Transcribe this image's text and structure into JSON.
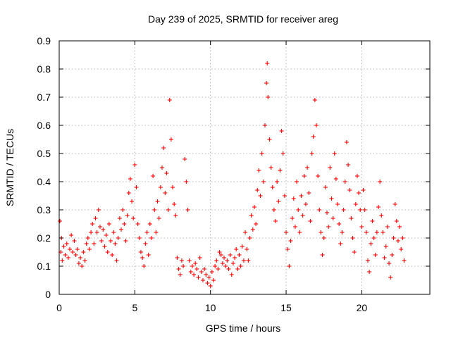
{
  "chart_data": {
    "type": "scatter",
    "title": "Day 239 of 2025, SRMTID for receiver areg",
    "xlabel": "GPS time / hours",
    "ylabel": "SRMTID / TECUs",
    "xlim": [
      0,
      24.5
    ],
    "ylim": [
      0,
      0.9
    ],
    "xticks": [
      0,
      5,
      10,
      15,
      20
    ],
    "xtick_labels": [
      "0",
      "5",
      "10",
      "15",
      "20"
    ],
    "yticks": [
      0,
      0.1,
      0.2,
      0.3,
      0.4,
      0.5,
      0.6,
      0.7,
      0.8,
      0.9
    ],
    "ytick_labels": [
      "0",
      "0.1",
      "0.2",
      "0.3",
      "0.4",
      "0.5",
      "0.6",
      "0.7",
      "0.8",
      "0.9"
    ],
    "grid": true,
    "marker": "+",
    "color": "#ff0000",
    "series": [
      {
        "name": "SRMTID",
        "points": [
          [
            0.05,
            0.26
          ],
          [
            0.1,
            0.15
          ],
          [
            0.15,
            0.2
          ],
          [
            0.2,
            0.12
          ],
          [
            0.3,
            0.17
          ],
          [
            0.4,
            0.14
          ],
          [
            0.5,
            0.18
          ],
          [
            0.6,
            0.13
          ],
          [
            0.7,
            0.16
          ],
          [
            0.8,
            0.21
          ],
          [
            0.9,
            0.15
          ],
          [
            1.0,
            0.19
          ],
          [
            1.1,
            0.14
          ],
          [
            1.2,
            0.16
          ],
          [
            1.3,
            0.11
          ],
          [
            1.4,
            0.13
          ],
          [
            1.5,
            0.1
          ],
          [
            1.6,
            0.15
          ],
          [
            1.7,
            0.12
          ],
          [
            1.8,
            0.18
          ],
          [
            1.9,
            0.2
          ],
          [
            2.0,
            0.16
          ],
          [
            2.1,
            0.22
          ],
          [
            2.2,
            0.25
          ],
          [
            2.3,
            0.18
          ],
          [
            2.4,
            0.27
          ],
          [
            2.5,
            0.22
          ],
          [
            2.6,
            0.3
          ],
          [
            2.7,
            0.24
          ],
          [
            2.8,
            0.19
          ],
          [
            2.9,
            0.23
          ],
          [
            3.0,
            0.17
          ],
          [
            3.1,
            0.21
          ],
          [
            3.2,
            0.15
          ],
          [
            3.3,
            0.25
          ],
          [
            3.4,
            0.19
          ],
          [
            3.5,
            0.14
          ],
          [
            3.6,
            0.22
          ],
          [
            3.7,
            0.18
          ],
          [
            3.8,
            0.12
          ],
          [
            3.9,
            0.2
          ],
          [
            4.0,
            0.27
          ],
          [
            4.1,
            0.23
          ],
          [
            4.2,
            0.3
          ],
          [
            4.3,
            0.25
          ],
          [
            4.4,
            0.19
          ],
          [
            4.5,
            0.28
          ],
          [
            4.6,
            0.36
          ],
          [
            4.7,
            0.41
          ],
          [
            4.8,
            0.33
          ],
          [
            4.9,
            0.27
          ],
          [
            5.0,
            0.46
          ],
          [
            5.1,
            0.38
          ],
          [
            5.2,
            0.25
          ],
          [
            5.3,
            0.2
          ],
          [
            5.4,
            0.15
          ],
          [
            5.5,
            0.13
          ],
          [
            5.6,
            0.1
          ],
          [
            5.7,
            0.18
          ],
          [
            5.8,
            0.22
          ],
          [
            5.9,
            0.14
          ],
          [
            6.0,
            0.25
          ],
          [
            6.1,
            0.2
          ],
          [
            6.2,
            0.42
          ],
          [
            6.3,
            0.3
          ],
          [
            6.4,
            0.22
          ],
          [
            6.5,
            0.33
          ],
          [
            6.6,
            0.27
          ],
          [
            6.7,
            0.38
          ],
          [
            6.8,
            0.45
          ],
          [
            6.9,
            0.52
          ],
          [
            7.0,
            0.36
          ],
          [
            7.1,
            0.43
          ],
          [
            7.2,
            0.3
          ],
          [
            7.3,
            0.69
          ],
          [
            7.4,
            0.55
          ],
          [
            7.5,
            0.38
          ],
          [
            7.6,
            0.32
          ],
          [
            7.7,
            0.28
          ],
          [
            7.8,
            0.13
          ],
          [
            7.9,
            0.09
          ],
          [
            8.0,
            0.07
          ],
          [
            8.1,
            0.12
          ],
          [
            8.2,
            0.1
          ],
          [
            8.3,
            0.48
          ],
          [
            8.4,
            0.4
          ],
          [
            8.5,
            0.3
          ],
          [
            8.6,
            0.12
          ],
          [
            8.7,
            0.08
          ],
          [
            8.8,
            0.1
          ],
          [
            8.9,
            0.07
          ],
          [
            9.0,
            0.11
          ],
          [
            9.1,
            0.09
          ],
          [
            9.2,
            0.06
          ],
          [
            9.3,
            0.13
          ],
          [
            9.4,
            0.08
          ],
          [
            9.5,
            0.05
          ],
          [
            9.6,
            0.09
          ],
          [
            9.7,
            0.07
          ],
          [
            9.8,
            0.04
          ],
          [
            9.9,
            0.06
          ],
          [
            10.0,
            0.03
          ],
          [
            10.1,
            0.08
          ],
          [
            10.2,
            0.05
          ],
          [
            10.3,
            0.1
          ],
          [
            10.4,
            0.12
          ],
          [
            10.5,
            0.09
          ],
          [
            10.6,
            0.15
          ],
          [
            10.7,
            0.14
          ],
          [
            10.8,
            0.11
          ],
          [
            10.9,
            0.13
          ],
          [
            11.0,
            0.1
          ],
          [
            11.1,
            0.12
          ],
          [
            11.2,
            0.09
          ],
          [
            11.3,
            0.14
          ],
          [
            11.4,
            0.07
          ],
          [
            11.5,
            0.11
          ],
          [
            11.6,
            0.13
          ],
          [
            11.7,
            0.16
          ],
          [
            11.8,
            0.09
          ],
          [
            11.9,
            0.14
          ],
          [
            12.0,
            0.1
          ],
          [
            12.1,
            0.17
          ],
          [
            12.2,
            0.12
          ],
          [
            12.3,
            0.22
          ],
          [
            12.4,
            0.16
          ],
          [
            12.5,
            0.12
          ],
          [
            12.6,
            0.2
          ],
          [
            12.7,
            0.28
          ],
          [
            12.8,
            0.23
          ],
          [
            12.9,
            0.31
          ],
          [
            13.0,
            0.25
          ],
          [
            13.1,
            0.37
          ],
          [
            13.2,
            0.44
          ],
          [
            13.3,
            0.35
          ],
          [
            13.4,
            0.5
          ],
          [
            13.5,
            0.4
          ],
          [
            13.6,
            0.6
          ],
          [
            13.7,
            0.75
          ],
          [
            13.75,
            0.82
          ],
          [
            13.8,
            0.7
          ],
          [
            13.9,
            0.55
          ],
          [
            14.0,
            0.45
          ],
          [
            14.1,
            0.38
          ],
          [
            14.2,
            0.3
          ],
          [
            14.3,
            0.26
          ],
          [
            14.4,
            0.4
          ],
          [
            14.5,
            0.33
          ],
          [
            14.6,
            0.44
          ],
          [
            14.7,
            0.58
          ],
          [
            14.8,
            0.5
          ],
          [
            14.9,
            0.35
          ],
          [
            15.0,
            0.22
          ],
          [
            15.1,
            0.16
          ],
          [
            15.2,
            0.1
          ],
          [
            15.3,
            0.19
          ],
          [
            15.4,
            0.27
          ],
          [
            15.5,
            0.34
          ],
          [
            15.6,
            0.24
          ],
          [
            15.7,
            0.4
          ],
          [
            15.8,
            0.3
          ],
          [
            15.9,
            0.22
          ],
          [
            16.0,
            0.35
          ],
          [
            16.1,
            0.28
          ],
          [
            16.2,
            0.42
          ],
          [
            16.3,
            0.32
          ],
          [
            16.4,
            0.45
          ],
          [
            16.5,
            0.36
          ],
          [
            16.6,
            0.26
          ],
          [
            16.7,
            0.5
          ],
          [
            16.8,
            0.56
          ],
          [
            16.9,
            0.69
          ],
          [
            17.0,
            0.6
          ],
          [
            17.1,
            0.42
          ],
          [
            17.2,
            0.3
          ],
          [
            17.3,
            0.22
          ],
          [
            17.4,
            0.14
          ],
          [
            17.5,
            0.2
          ],
          [
            17.6,
            0.38
          ],
          [
            17.7,
            0.29
          ],
          [
            17.8,
            0.24
          ],
          [
            17.9,
            0.45
          ],
          [
            18.0,
            0.34
          ],
          [
            18.1,
            0.27
          ],
          [
            18.2,
            0.5
          ],
          [
            18.3,
            0.41
          ],
          [
            18.4,
            0.32
          ],
          [
            18.5,
            0.25
          ],
          [
            18.6,
            0.18
          ],
          [
            18.7,
            0.22
          ],
          [
            18.8,
            0.3
          ],
          [
            18.9,
            0.4
          ],
          [
            19.0,
            0.54
          ],
          [
            19.1,
            0.46
          ],
          [
            19.2,
            0.37
          ],
          [
            19.3,
            0.27
          ],
          [
            19.4,
            0.2
          ],
          [
            19.5,
            0.15
          ],
          [
            19.6,
            0.32
          ],
          [
            19.7,
            0.42
          ],
          [
            19.8,
            0.36
          ],
          [
            19.9,
            0.3
          ],
          [
            20.0,
            0.24
          ],
          [
            20.1,
            0.37
          ],
          [
            20.2,
            0.3
          ],
          [
            20.3,
            0.22
          ],
          [
            20.4,
            0.12
          ],
          [
            20.5,
            0.08
          ],
          [
            20.6,
            0.18
          ],
          [
            20.7,
            0.26
          ],
          [
            20.8,
            0.2
          ],
          [
            20.9,
            0.14
          ],
          [
            21.0,
            0.22
          ],
          [
            21.1,
            0.31
          ],
          [
            21.2,
            0.4
          ],
          [
            21.3,
            0.28
          ],
          [
            21.4,
            0.22
          ],
          [
            21.5,
            0.13
          ],
          [
            21.6,
            0.17
          ],
          [
            21.7,
            0.24
          ],
          [
            21.8,
            0.11
          ],
          [
            21.9,
            0.06
          ],
          [
            22.0,
            0.14
          ],
          [
            22.1,
            0.2
          ],
          [
            22.2,
            0.32
          ],
          [
            22.3,
            0.26
          ],
          [
            22.4,
            0.19
          ],
          [
            22.5,
            0.24
          ],
          [
            22.6,
            0.16
          ],
          [
            22.7,
            0.2
          ],
          [
            22.8,
            0.12
          ]
        ]
      }
    ]
  }
}
